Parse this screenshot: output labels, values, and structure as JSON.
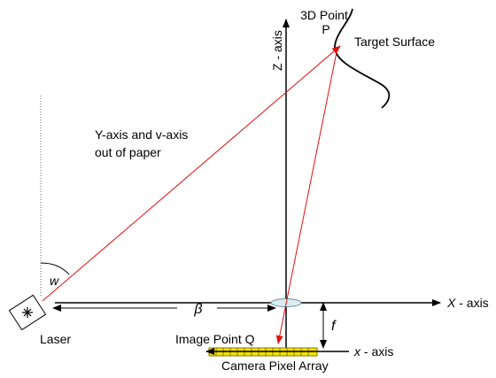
{
  "labels": {
    "point_p_line1": "3D Point",
    "point_p_line2": "P",
    "target_surface": "Target Surface",
    "z_axis": "Z - axis",
    "y_v_axis_line1": "Y-axis and v-axis",
    "y_v_axis_line2": "out of paper",
    "w": "w",
    "beta": "β",
    "x_axis_prefix": "X",
    "x_axis_suffix": " - axis",
    "f": "f",
    "laser": "Laser",
    "image_point_q": "Image Point Q",
    "x_small_axis_prefix": "x",
    "x_small_axis_suffix": " - axis",
    "camera_pixel_array": "Camera Pixel Array"
  },
  "colors": {
    "ray": "#e01010",
    "axis": "#000000",
    "lens": "#9ec7d2",
    "pixel_fill": "#f4e400",
    "pixel_stroke": "#8a7a00"
  },
  "icons": {
    "laser": "laser-starburst-icon"
  }
}
